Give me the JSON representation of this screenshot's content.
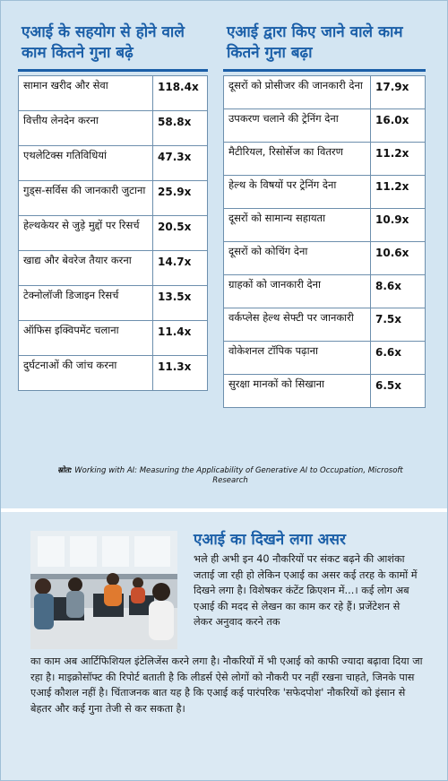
{
  "left_panel": {
    "title": "एआई के सहयोग से होने वाले काम  कितने गुना बढ़े",
    "rows": [
      {
        "task": "सामान खरीद और सेवा",
        "value": "118.4x"
      },
      {
        "task": "वित्तीय लेनदेन करना",
        "value": "58.8x"
      },
      {
        "task": "एथलेटिक्स गतिविधियां",
        "value": "47.3x"
      },
      {
        "task": "गुड्स-सर्विस की जानकारी जुटाना",
        "value": "25.9x"
      },
      {
        "task": "हेल्थकेयर से जुड़े मुद्दों पर रिसर्च",
        "value": "20.5x"
      },
      {
        "task": "खाद्य और बेवरेज तैयार करना",
        "value": "14.7x"
      },
      {
        "task": "टेक्नोलॉजी डिजाइन रिसर्च",
        "value": "13.5x"
      },
      {
        "task": "ऑफिस इक्विपमेंट चलाना",
        "value": "11.4x"
      },
      {
        "task": "दुर्घटनाओं की जांच करना",
        "value": "11.3x"
      }
    ]
  },
  "right_panel": {
    "title": "एआई द्वारा किए जाने वाले काम कितने गुना बढ़ा",
    "rows": [
      {
        "task": "दूसरों को प्रोसीजर की जानकारी देना",
        "value": "17.9x"
      },
      {
        "task": "उपकरण चलाने की ट्रेनिंग देना",
        "value": "16.0x"
      },
      {
        "task": "मैटीरियल, रिसोर्सेज का वितरण",
        "value": "11.2x"
      },
      {
        "task": "हेल्थ के विषयों पर ट्रेनिंग देना",
        "value": "11.2x"
      },
      {
        "task": "दूसरों को सामान्य सहायता",
        "value": "10.9x"
      },
      {
        "task": "दूसरों को कोचिंग देना",
        "value": "10.6x"
      },
      {
        "task": "ग्राहकों को जानकारी देना",
        "value": "8.6x"
      },
      {
        "task": "वर्कप्लेस हेल्थ सेफ्टी पर जानकारी",
        "value": "7.5x"
      },
      {
        "task": "वोकेशनल टॉपिक पढ़ाना",
        "value": "6.6x"
      },
      {
        "task": "सुरक्षा मानकों को सिखाना",
        "value": "6.5x"
      }
    ]
  },
  "source": {
    "label": "स्रोत:",
    "text": "Working with AI: Measuring the Applicability of Generative AI to Occupation, Microsoft Research"
  },
  "article": {
    "title": "एआई का दिखने लगा असर",
    "body_part1": "भले ही अभी इन 40 नौकरियों पर संकट बढ़ने की आशंका जताई जा रही हो लेकिन एआई का असर कई तरह के कामों में दिखने लगा है। विशेषकर कंटेंट क्रिएशन में...। कई लोग अब एआई की मदद से लेखन का काम कर रहे हैं। प्रजेंटेशन से लेकर अनुवाद करने तक",
    "body_part2": "का काम अब आर्टिफिशियल इंटेलिजेंस करने लगा है। नौकरियों में भी एआई को काफी ज्यादा बढ़ावा दिया जा रहा है। माइक्रोसॉफ्ट की रिपोर्ट बताती है कि लीडर्स ऐसे लोगों को नौकरी पर नहीं रखना चाहते, जिनके पास एआई कौशल नहीं है। चिंताजनक बात यह है कि एआई कई पारंपरिक 'सफेदपोश' नौकरियों को इंसान से बेहतर और कई गुना तेजी से कर सकता है।"
  }
}
